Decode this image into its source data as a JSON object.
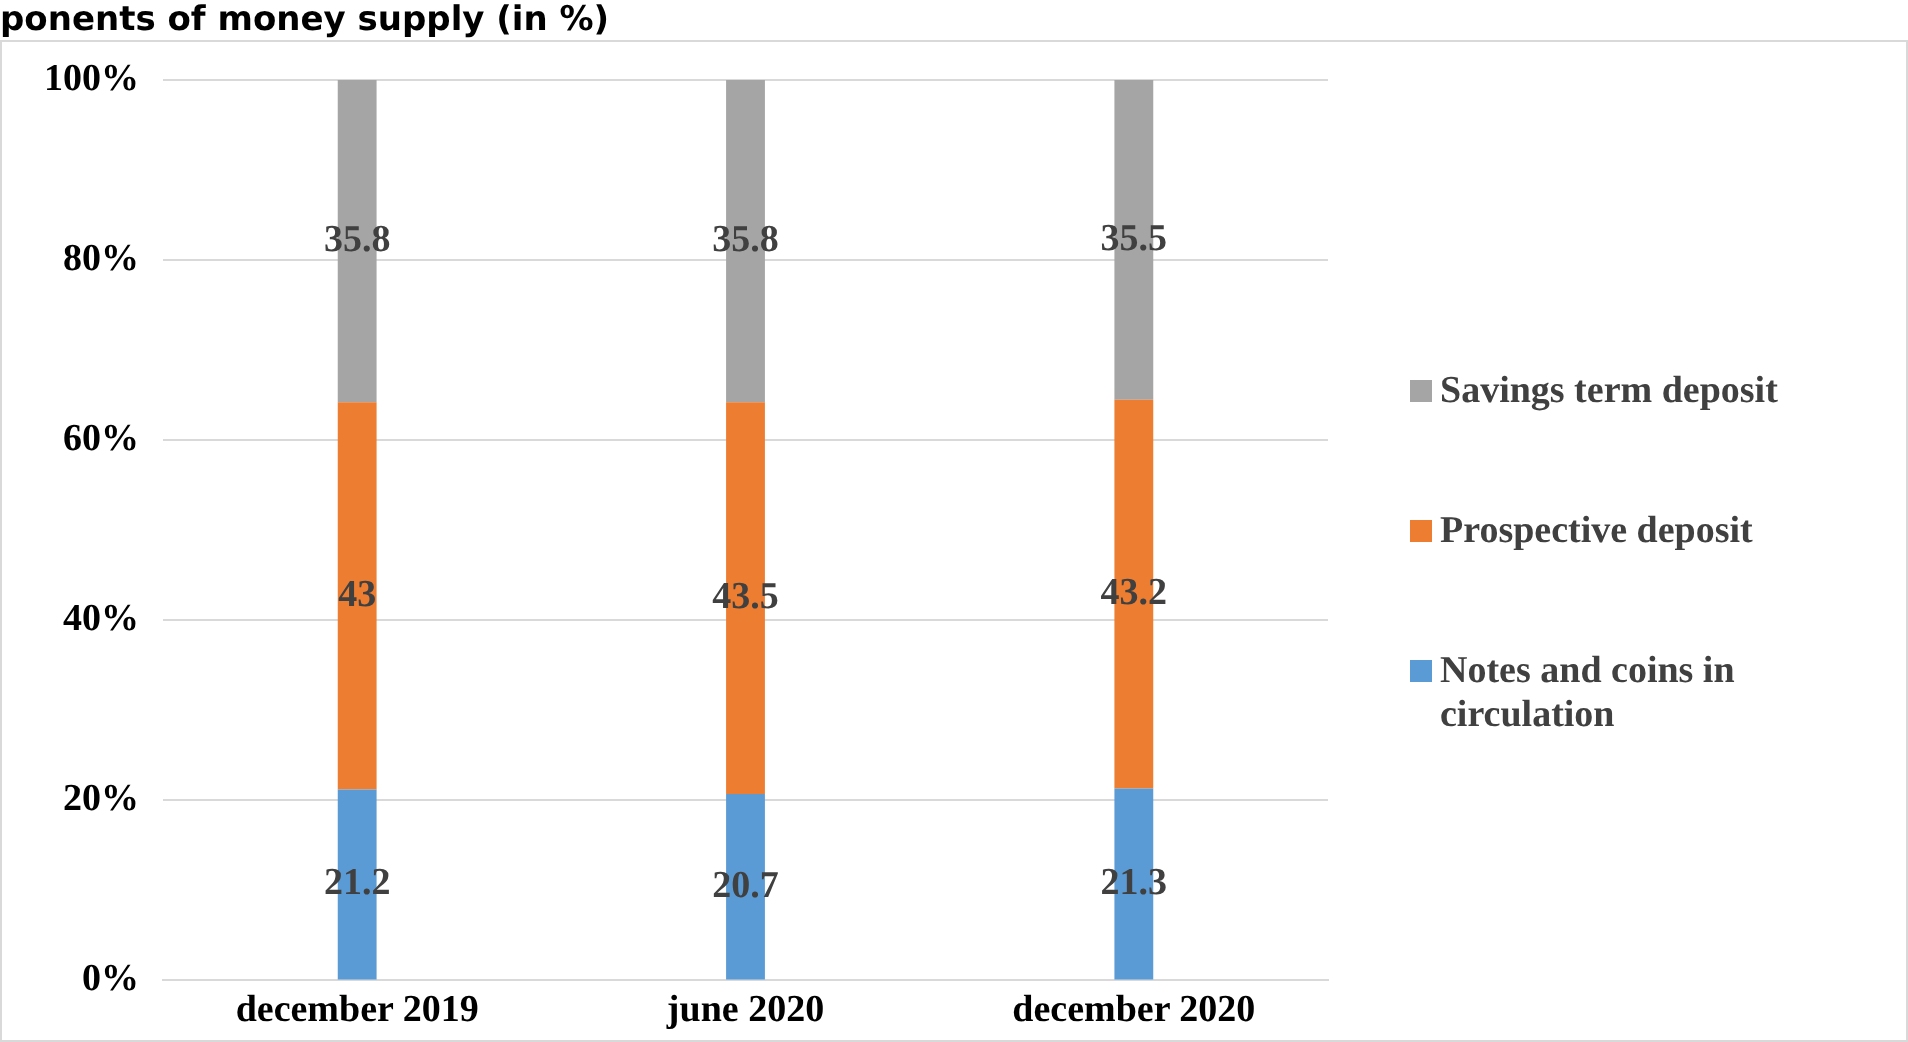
{
  "chart_data": {
    "type": "bar",
    "title": "ponents of money supply (in %)",
    "categories": [
      "december 2019",
      "june 2020",
      "december 2020"
    ],
    "series": [
      {
        "name": "Notes and coins in circulation",
        "color": "#5b9bd5",
        "values": [
          21.2,
          20.7,
          21.3
        ]
      },
      {
        "name": "Prospective deposit",
        "color": "#ed7d31",
        "values": [
          43,
          43.5,
          43.2
        ]
      },
      {
        "name": "Savings term deposit",
        "color": "#a5a5a5",
        "values": [
          35.8,
          35.8,
          35.5
        ]
      }
    ],
    "stacked": true,
    "data_labels": true,
    "ylim": [
      0,
      100
    ],
    "yticks": [
      {
        "value": 0,
        "label": "0%"
      },
      {
        "value": 20,
        "label": "20%"
      },
      {
        "value": 40,
        "label": "40%"
      },
      {
        "value": 60,
        "label": "60%"
      },
      {
        "value": 80,
        "label": "80%"
      },
      {
        "value": 100,
        "label": "100%"
      }
    ],
    "grid": "y",
    "legend": "right"
  }
}
